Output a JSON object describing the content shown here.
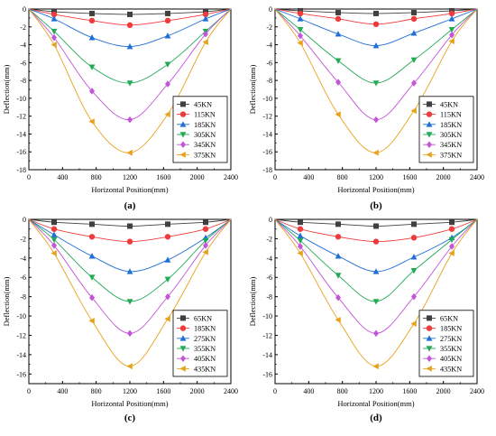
{
  "colors": [
    "#404040",
    "#ef3b3b",
    "#1f6fd6",
    "#22aa55",
    "#c455d8",
    "#e8a21a"
  ],
  "markers": [
    "square",
    "circle",
    "triangle-up",
    "triangle-down",
    "diamond",
    "triangle-left"
  ],
  "chart_data": [
    {
      "type": "line",
      "panel_label": "(a)",
      "xlabel": "Horizontal Position(mm)",
      "ylabel": "Deflection(mm)",
      "xlim": [
        0,
        2400
      ],
      "ylim": [
        -18,
        0
      ],
      "xticks": [
        "0",
        "400",
        "800",
        "1200",
        "1600",
        "2000",
        "2400"
      ],
      "yticks": [
        "0",
        "-2",
        "-4",
        "-6",
        "-8",
        "-10",
        "-12",
        "-14",
        "-16",
        "-18"
      ],
      "legend_position": "lower-right",
      "x": [
        300,
        750,
        1200,
        1650,
        2100
      ],
      "series": [
        {
          "name": "45KN",
          "values": [
            -0.3,
            -0.5,
            -0.6,
            -0.5,
            -0.3
          ]
        },
        {
          "name": "115KN",
          "values": [
            -0.6,
            -1.3,
            -1.8,
            -1.3,
            -0.6
          ]
        },
        {
          "name": "185KN",
          "values": [
            -1.1,
            -3.2,
            -4.2,
            -3.0,
            -1.1
          ]
        },
        {
          "name": "305KN",
          "values": [
            -2.5,
            -6.5,
            -8.3,
            -6.2,
            -2.5
          ]
        },
        {
          "name": "345KN",
          "values": [
            -3.2,
            -9.2,
            -12.4,
            -8.4,
            -2.8
          ]
        },
        {
          "name": "375KN",
          "values": [
            -4.0,
            -12.6,
            -16.1,
            -11.8,
            -3.7
          ]
        }
      ]
    },
    {
      "type": "line",
      "panel_label": "(b)",
      "xlabel": "Horizontal Position(mm)",
      "ylabel": "Deflection(mm)",
      "xlim": [
        0,
        2400
      ],
      "ylim": [
        -18,
        0
      ],
      "xticks": [
        "0",
        "400",
        "800",
        "1200",
        "1600",
        "2000",
        "2400"
      ],
      "yticks": [
        "0",
        "-2",
        "-4",
        "-6",
        "-8",
        "-10",
        "-12",
        "-14",
        "-16",
        "-18"
      ],
      "legend_position": "lower-right",
      "x": [
        300,
        750,
        1200,
        1650,
        2100
      ],
      "series": [
        {
          "name": "45KN",
          "values": [
            -0.2,
            -0.4,
            -0.5,
            -0.4,
            -0.2
          ]
        },
        {
          "name": "115KN",
          "values": [
            -0.5,
            -1.1,
            -1.7,
            -1.1,
            -0.5
          ]
        },
        {
          "name": "185KN",
          "values": [
            -1.1,
            -2.8,
            -4.1,
            -2.7,
            -1.1
          ]
        },
        {
          "name": "305KN",
          "values": [
            -2.3,
            -5.8,
            -8.3,
            -5.7,
            -2.3
          ]
        },
        {
          "name": "345KN",
          "values": [
            -3.0,
            -8.2,
            -12.4,
            -8.3,
            -2.9
          ]
        },
        {
          "name": "375KN",
          "values": [
            -3.8,
            -11.8,
            -16.1,
            -11.4,
            -3.6
          ]
        }
      ]
    },
    {
      "type": "line",
      "panel_label": "(c)",
      "xlabel": "Horizontal Position(mm)",
      "ylabel": "Deflection(mm)",
      "xlim": [
        0,
        2400
      ],
      "ylim": [
        -17,
        0
      ],
      "xticks": [
        "0",
        "400",
        "800",
        "1200",
        "1600",
        "2000",
        "2400"
      ],
      "yticks": [
        "0",
        "-2",
        "-4",
        "-6",
        "-8",
        "-10",
        "-12",
        "-14",
        "-16"
      ],
      "legend_position": "lower-right",
      "x": [
        300,
        750,
        1200,
        1650,
        2100
      ],
      "series": [
        {
          "name": "65KN",
          "values": [
            -0.3,
            -0.5,
            -0.7,
            -0.5,
            -0.3
          ]
        },
        {
          "name": "185KN",
          "values": [
            -1.0,
            -1.8,
            -2.3,
            -1.8,
            -1.0
          ]
        },
        {
          "name": "275KN",
          "values": [
            -1.6,
            -3.8,
            -5.4,
            -4.2,
            -1.9
          ]
        },
        {
          "name": "355KN",
          "values": [
            -2.1,
            -6.0,
            -8.5,
            -6.2,
            -2.2
          ]
        },
        {
          "name": "405KN",
          "values": [
            -2.7,
            -8.1,
            -11.8,
            -8.0,
            -2.7
          ]
        },
        {
          "name": "435KN",
          "values": [
            -3.5,
            -10.5,
            -15.2,
            -10.3,
            -3.4
          ]
        }
      ]
    },
    {
      "type": "line",
      "panel_label": "(d)",
      "xlabel": "Horizontal Position(mm)",
      "ylabel": "Deflection(mm)",
      "xlim": [
        0,
        2400
      ],
      "ylim": [
        -17,
        0
      ],
      "xticks": [
        "0",
        "400",
        "800",
        "1200",
        "1600",
        "2000",
        "2400"
      ],
      "yticks": [
        "0",
        "-2",
        "-4",
        "-6",
        "-8",
        "-10",
        "-12",
        "-14",
        "-16"
      ],
      "legend_position": "lower-right",
      "x": [
        300,
        750,
        1200,
        1650,
        2100
      ],
      "series": [
        {
          "name": "65KN",
          "values": [
            -0.3,
            -0.5,
            -0.7,
            -0.5,
            -0.3
          ]
        },
        {
          "name": "185KN",
          "values": [
            -1.0,
            -1.8,
            -2.3,
            -1.9,
            -1.0
          ]
        },
        {
          "name": "275KN",
          "values": [
            -1.7,
            -3.8,
            -5.4,
            -3.9,
            -1.9
          ]
        },
        {
          "name": "355KN",
          "values": [
            -2.2,
            -5.8,
            -8.5,
            -5.3,
            -2.1
          ]
        },
        {
          "name": "405KN",
          "values": [
            -2.8,
            -8.1,
            -11.8,
            -8.0,
            -2.8
          ]
        },
        {
          "name": "435KN",
          "values": [
            -3.5,
            -10.4,
            -15.2,
            -10.8,
            -3.5
          ]
        }
      ]
    }
  ]
}
